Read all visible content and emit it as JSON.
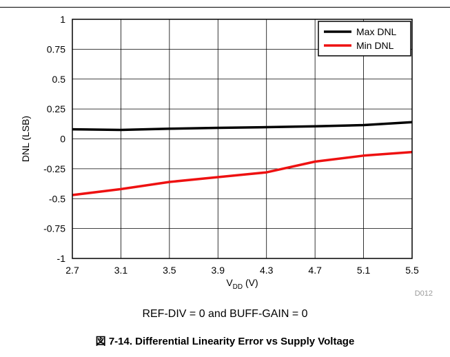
{
  "chart_data": {
    "type": "line",
    "xlabel": "V",
    "xlabel_sub": "DD",
    "xlabel_unit": " (V)",
    "ylabel": "DNL (LSB)",
    "xlim": [
      2.7,
      5.5
    ],
    "ylim": [
      -1,
      1
    ],
    "xticks": [
      "2.7",
      "3.1",
      "3.5",
      "3.9",
      "4.3",
      "4.7",
      "5.1",
      "5.5"
    ],
    "yticks": [
      "1",
      "0.75",
      "0.5",
      "0.25",
      "0",
      "-0.25",
      "-0.5",
      "-0.75",
      "-1"
    ],
    "grid": true,
    "legend_position": "top-right",
    "series": [
      {
        "name": "Max DNL",
        "color": "#000000",
        "x": [
          2.7,
          3.1,
          3.5,
          3.9,
          4.3,
          4.7,
          5.1,
          5.5
        ],
        "values": [
          0.08,
          0.075,
          0.085,
          0.092,
          0.098,
          0.105,
          0.115,
          0.14
        ]
      },
      {
        "name": "Min DNL",
        "color": "#ee1111",
        "x": [
          2.7,
          3.1,
          3.5,
          3.9,
          4.3,
          4.7,
          5.1,
          5.5
        ],
        "values": [
          -0.47,
          -0.42,
          -0.36,
          -0.32,
          -0.28,
          -0.19,
          -0.14,
          -0.11
        ]
      }
    ],
    "figure_id": "D012"
  },
  "condition": "REF-DIV = 0 and BUFF-GAIN = 0",
  "caption": "図 7-14. Differential Linearity Error vs Supply Voltage"
}
